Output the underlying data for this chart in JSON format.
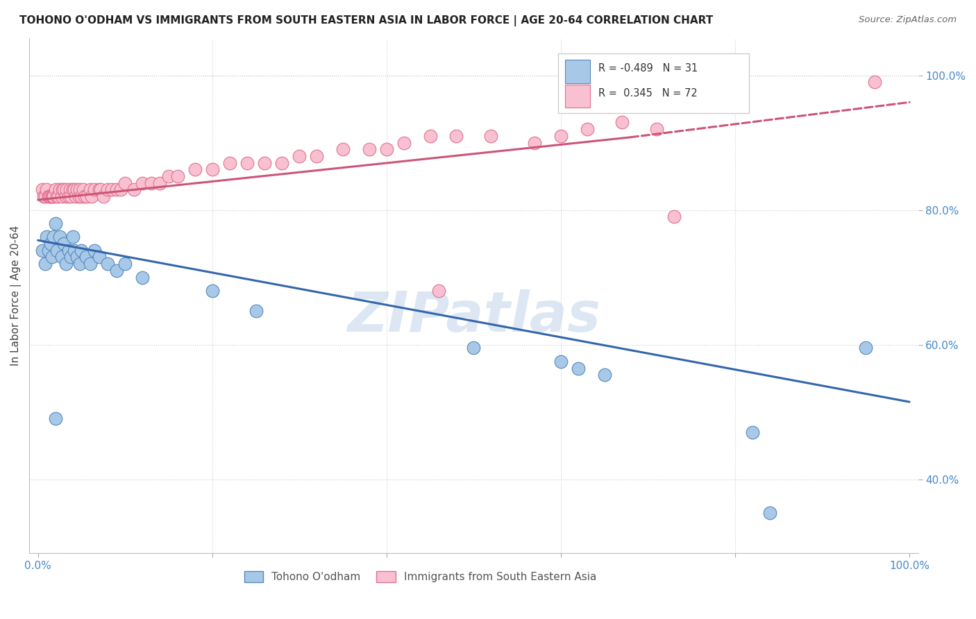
{
  "title": "TOHONO O'ODHAM VS IMMIGRANTS FROM SOUTH EASTERN ASIA IN LABOR FORCE | AGE 20-64 CORRELATION CHART",
  "source": "Source: ZipAtlas.com",
  "ylabel": "In Labor Force | Age 20-64",
  "legend_labels": [
    "Tohono O'odham",
    "Immigrants from South Eastern Asia"
  ],
  "blue_R": -0.489,
  "blue_N": 31,
  "pink_R": 0.345,
  "pink_N": 72,
  "blue_color": "#a8c8e8",
  "blue_edge_color": "#5588bb",
  "blue_line_color": "#3366aa",
  "pink_color": "#f8c0d0",
  "pink_edge_color": "#e07090",
  "pink_line_color": "#cc5577",
  "watermark": "ZIPatlas",
  "blue_points_x": [
    0.005,
    0.008,
    0.01,
    0.012,
    0.015,
    0.016,
    0.018,
    0.02,
    0.022,
    0.025,
    0.027,
    0.03,
    0.032,
    0.035,
    0.038,
    0.04,
    0.042,
    0.045,
    0.048,
    0.05,
    0.055,
    0.06,
    0.065,
    0.07,
    0.08,
    0.09,
    0.1,
    0.12,
    0.2,
    0.25,
    0.02
  ],
  "blue_points_y": [
    0.74,
    0.72,
    0.76,
    0.74,
    0.75,
    0.73,
    0.76,
    0.78,
    0.74,
    0.76,
    0.73,
    0.75,
    0.72,
    0.74,
    0.73,
    0.76,
    0.74,
    0.73,
    0.72,
    0.74,
    0.73,
    0.72,
    0.74,
    0.73,
    0.72,
    0.71,
    0.72,
    0.7,
    0.68,
    0.65,
    0.49
  ],
  "blue_points_x2": [
    0.5,
    0.6,
    0.62,
    0.65,
    0.82,
    0.84,
    0.95
  ],
  "blue_points_y2": [
    0.595,
    0.575,
    0.565,
    0.555,
    0.47,
    0.35,
    0.595
  ],
  "pink_points_x": [
    0.005,
    0.007,
    0.008,
    0.01,
    0.012,
    0.013,
    0.015,
    0.016,
    0.017,
    0.018,
    0.02,
    0.022,
    0.023,
    0.025,
    0.027,
    0.028,
    0.03,
    0.032,
    0.033,
    0.035,
    0.037,
    0.038,
    0.04,
    0.042,
    0.043,
    0.045,
    0.047,
    0.048,
    0.05,
    0.052,
    0.054,
    0.056,
    0.06,
    0.062,
    0.065,
    0.07,
    0.072,
    0.075,
    0.08,
    0.085,
    0.09,
    0.095,
    0.1,
    0.11,
    0.12,
    0.13,
    0.14,
    0.15,
    0.16,
    0.18,
    0.2,
    0.22,
    0.24,
    0.26,
    0.28,
    0.3,
    0.32,
    0.35,
    0.38,
    0.4,
    0.42,
    0.45,
    0.48,
    0.52,
    0.57,
    0.6,
    0.63,
    0.67,
    0.71,
    0.73,
    0.46,
    0.96
  ],
  "pink_points_y": [
    0.83,
    0.82,
    0.82,
    0.83,
    0.82,
    0.82,
    0.82,
    0.82,
    0.82,
    0.82,
    0.83,
    0.82,
    0.82,
    0.83,
    0.82,
    0.83,
    0.83,
    0.82,
    0.83,
    0.82,
    0.83,
    0.82,
    0.83,
    0.83,
    0.82,
    0.83,
    0.82,
    0.83,
    0.82,
    0.83,
    0.82,
    0.82,
    0.83,
    0.82,
    0.83,
    0.83,
    0.83,
    0.82,
    0.83,
    0.83,
    0.83,
    0.83,
    0.84,
    0.83,
    0.84,
    0.84,
    0.84,
    0.85,
    0.85,
    0.86,
    0.86,
    0.87,
    0.87,
    0.87,
    0.87,
    0.88,
    0.88,
    0.89,
    0.89,
    0.89,
    0.9,
    0.91,
    0.91,
    0.91,
    0.9,
    0.91,
    0.92,
    0.93,
    0.92,
    0.79,
    0.68,
    0.99
  ],
  "xlim": [
    -0.01,
    1.01
  ],
  "ylim": [
    0.29,
    1.055
  ],
  "blue_trend": [
    0.0,
    1.0,
    0.755,
    0.515
  ],
  "pink_trend_solid": [
    0.0,
    0.68,
    0.815,
    0.908
  ],
  "pink_trend_dash": [
    0.68,
    1.0,
    0.908,
    0.96
  ],
  "x_ticks": [
    0.0,
    0.2,
    0.4,
    0.6,
    0.8,
    1.0
  ],
  "x_tick_labels": [
    "0.0%",
    "",
    "",
    "",
    "",
    "100.0%"
  ],
  "y_ticks": [
    0.4,
    0.6,
    0.8,
    1.0
  ],
  "y_tick_labels": [
    "40.0%",
    "60.0%",
    "80.0%",
    "100.0%"
  ]
}
